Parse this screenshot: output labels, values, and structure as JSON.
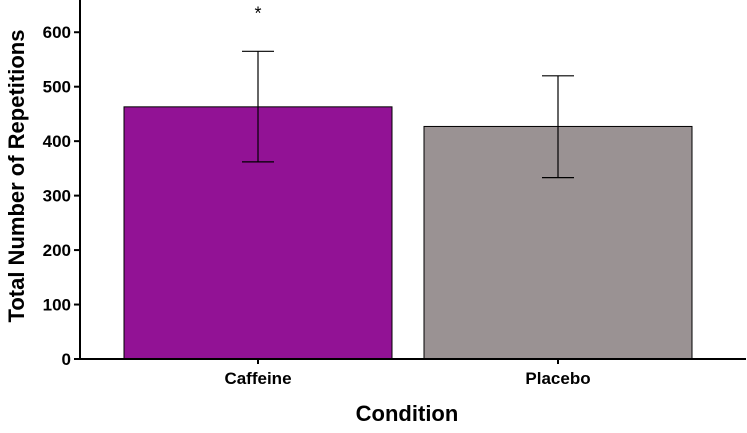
{
  "chart_data": {
    "type": "bar",
    "title": "",
    "xlabel": "Condition",
    "ylabel": "Total Number of Repetitions",
    "categories": [
      "Caffeine",
      "Placebo"
    ],
    "values": [
      463,
      427
    ],
    "error_bars": [
      {
        "low": 362,
        "high": 565
      },
      {
        "low": 333,
        "high": 520
      }
    ],
    "colors": [
      "#921295",
      "#9a9293"
    ],
    "annotations": [
      {
        "category": "Caffeine",
        "text": "*"
      }
    ],
    "ylim": [
      0,
      650
    ],
    "yticks": [
      {
        "value": 0,
        "label": "0"
      },
      {
        "value": 100,
        "label": "100"
      },
      {
        "value": 200,
        "label": "200"
      },
      {
        "value": 300,
        "label": "300"
      },
      {
        "value": 400,
        "label": "400"
      },
      {
        "value": 500,
        "label": "500"
      },
      {
        "value": 600,
        "label": "600"
      }
    ],
    "grid": false,
    "legend": "none"
  }
}
